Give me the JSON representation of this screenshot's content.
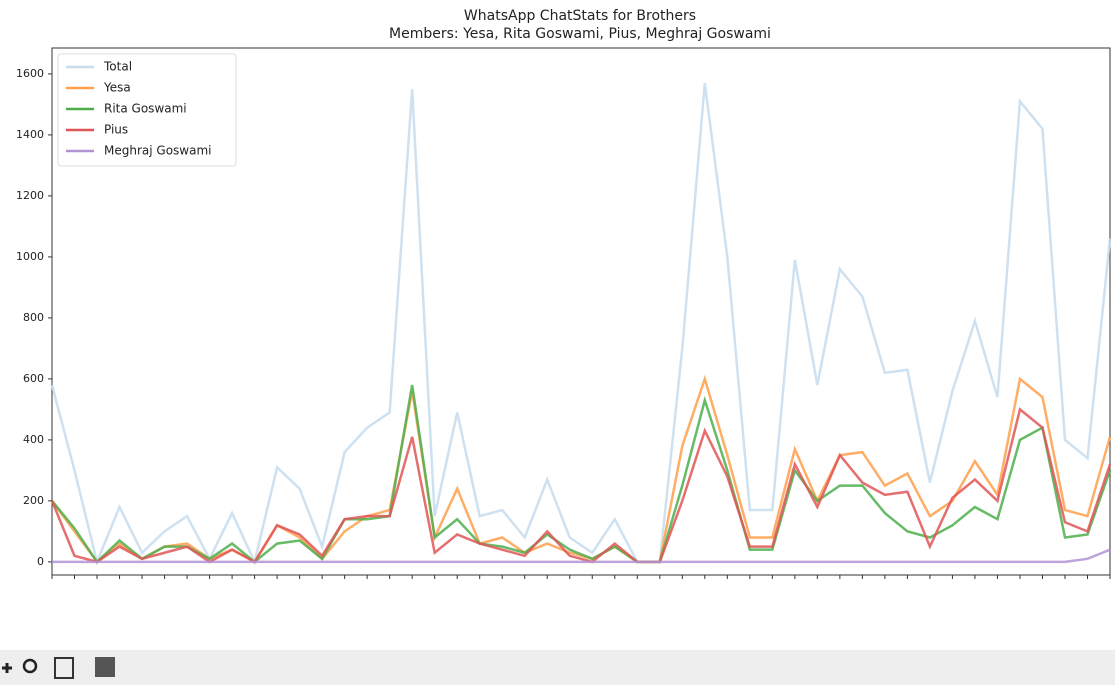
{
  "chart_data": {
    "type": "line",
    "title": "WhatsApp ChatStats for Brothers",
    "subtitle": "Members: Yesa, Rita Goswami, Pius, Meghraj Goswami",
    "categories": [
      null,
      null,
      null,
      null,
      null,
      null,
      null,
      null,
      null,
      null,
      null,
      null,
      null,
      null,
      null,
      null,
      null,
      null,
      null,
      null,
      null,
      null,
      null,
      null,
      null,
      null,
      null,
      null,
      null,
      null,
      null,
      null,
      null,
      null,
      null,
      null,
      null,
      null,
      null,
      null,
      null,
      null,
      null,
      null,
      null,
      null,
      null,
      null
    ],
    "series": [
      {
        "name": "Total",
        "color": "#c6dcef",
        "values": [
          580,
          300,
          0,
          180,
          30,
          100,
          150,
          10,
          160,
          0,
          310,
          240,
          50,
          360,
          440,
          490,
          1550,
          150,
          490,
          150,
          170,
          80,
          270,
          80,
          30,
          140,
          0,
          0,
          700,
          1570,
          1000,
          170,
          170,
          990,
          580,
          960,
          870,
          620,
          630,
          260,
          560,
          790,
          540,
          1510,
          1420,
          400,
          340,
          1060
        ]
      },
      {
        "name": "Yesa",
        "color": "#ff9f4a",
        "values": [
          200,
          100,
          0,
          60,
          10,
          50,
          60,
          10,
          40,
          0,
          120,
          80,
          10,
          100,
          150,
          170,
          560,
          80,
          240,
          60,
          80,
          30,
          60,
          30,
          10,
          50,
          0,
          0,
          380,
          600,
          350,
          80,
          80,
          370,
          200,
          350,
          360,
          250,
          290,
          150,
          200,
          330,
          220,
          600,
          540,
          170,
          150,
          410
        ]
      },
      {
        "name": "Rita Goswami",
        "color": "#4caf4c",
        "values": [
          200,
          110,
          0,
          70,
          10,
          50,
          50,
          10,
          60,
          0,
          60,
          70,
          10,
          140,
          140,
          150,
          580,
          80,
          140,
          60,
          50,
          30,
          90,
          40,
          10,
          50,
          0,
          0,
          250,
          530,
          300,
          40,
          40,
          300,
          200,
          250,
          250,
          160,
          100,
          80,
          120,
          180,
          140,
          400,
          440,
          80,
          90,
          300
        ]
      },
      {
        "name": "Pius",
        "color": "#e05555",
        "values": [
          200,
          20,
          0,
          50,
          10,
          30,
          50,
          0,
          40,
          0,
          120,
          90,
          20,
          140,
          150,
          150,
          410,
          30,
          90,
          60,
          40,
          20,
          100,
          20,
          0,
          60,
          0,
          0,
          200,
          430,
          280,
          50,
          50,
          320,
          180,
          350,
          260,
          220,
          230,
          50,
          210,
          270,
          200,
          500,
          440,
          130,
          100,
          320
        ]
      },
      {
        "name": "Meghraj Goswami",
        "color": "#b294d4",
        "values": [
          0,
          0,
          0,
          0,
          0,
          0,
          0,
          0,
          0,
          0,
          0,
          0,
          0,
          0,
          0,
          0,
          0,
          0,
          0,
          0,
          0,
          0,
          0,
          0,
          0,
          0,
          0,
          0,
          0,
          0,
          0,
          0,
          0,
          0,
          0,
          0,
          0,
          0,
          0,
          0,
          0,
          0,
          0,
          0,
          0,
          0,
          10,
          40
        ]
      }
    ],
    "ylim": [
      -43,
      1685
    ],
    "yticks": [
      0,
      200,
      400,
      600,
      800,
      1000,
      1200,
      1400,
      1600
    ],
    "legend": "upper left"
  }
}
